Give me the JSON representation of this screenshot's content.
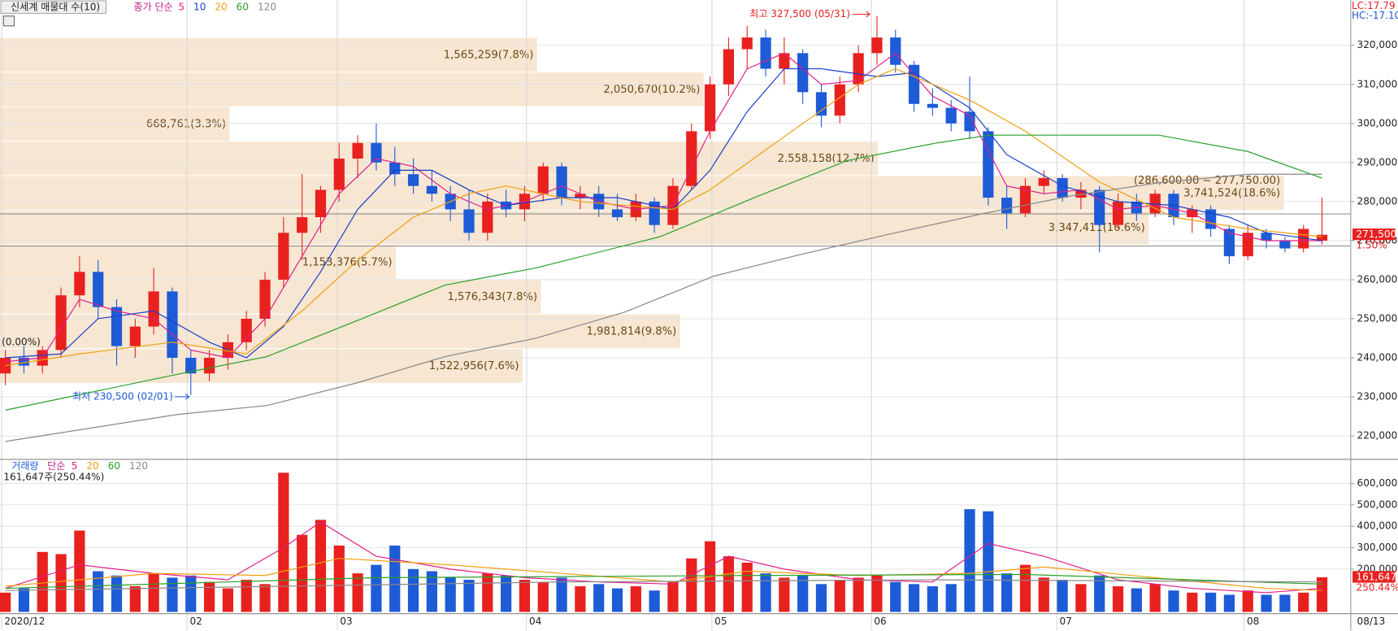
{
  "chart_data": {
    "type": "candlestick",
    "title": "신세계 매물대 수(10)",
    "ma_label": "종가 단순",
    "up_color": "#e8211f",
    "down_color": "#1e5bd6",
    "grid": true,
    "xlim": [
      -0.29,
      72.55
    ],
    "ylim": [
      214000,
      331600
    ],
    "yticks": [
      {
        "value": 220000,
        "label": "220,000"
      },
      {
        "value": 230000,
        "label": "230,000"
      },
      {
        "value": 240000,
        "label": "240,000"
      },
      {
        "value": 250000,
        "label": "250,000"
      },
      {
        "value": 260000,
        "label": "260,000"
      },
      {
        "value": 270000,
        "label": "270,000"
      },
      {
        "value": 280000,
        "label": "280,000"
      },
      {
        "value": 290000,
        "label": "290,000"
      },
      {
        "value": 300000,
        "label": "300,000"
      },
      {
        "value": 310000,
        "label": "310,000"
      },
      {
        "value": 320000,
        "label": "320,000"
      }
    ],
    "xticks": [
      {
        "value": -0.2,
        "label": "2020/12"
      },
      {
        "value": 9.8,
        "label": "02"
      },
      {
        "value": 17.9,
        "label": "03"
      },
      {
        "value": 28.1,
        "label": "04"
      },
      {
        "value": 38.1,
        "label": "05"
      },
      {
        "value": 46.7,
        "label": "06"
      },
      {
        "value": 56.7,
        "label": "07"
      },
      {
        "value": 66.8,
        "label": "08"
      }
    ],
    "last_date": "08/13",
    "candles": [
      [
        236000,
        242000,
        233000,
        240000
      ],
      [
        240000,
        243000,
        236000,
        238000
      ],
      [
        238000,
        243000,
        236000,
        242000
      ],
      [
        242000,
        258000,
        240000,
        256000
      ],
      [
        256000,
        266000,
        253000,
        262000
      ],
      [
        262000,
        265000,
        250000,
        253000
      ],
      [
        253000,
        255000,
        238000,
        243000
      ],
      [
        243000,
        250000,
        240000,
        248000
      ],
      [
        248000,
        263000,
        246000,
        257000
      ],
      [
        257000,
        258000,
        236000,
        240000
      ],
      [
        240000,
        242000,
        230500,
        236000
      ],
      [
        236000,
        242000,
        234000,
        240000
      ],
      [
        240000,
        246000,
        237000,
        244000
      ],
      [
        244000,
        252000,
        242000,
        250000
      ],
      [
        250000,
        262000,
        248000,
        260000
      ],
      [
        260000,
        276000,
        258000,
        272000
      ],
      [
        272000,
        287000,
        265000,
        276000
      ],
      [
        276000,
        284000,
        272000,
        283000
      ],
      [
        283000,
        295000,
        280000,
        291000
      ],
      [
        291000,
        297000,
        286000,
        295000
      ],
      [
        295000,
        300000,
        288000,
        290000
      ],
      [
        290000,
        294000,
        284000,
        287000
      ],
      [
        287000,
        291000,
        282000,
        284000
      ],
      [
        284000,
        288000,
        280000,
        282000
      ],
      [
        282000,
        284000,
        275000,
        278000
      ],
      [
        278000,
        283000,
        270000,
        272000
      ],
      [
        272000,
        282000,
        270000,
        280000
      ],
      [
        280000,
        283000,
        276000,
        278000
      ],
      [
        278000,
        284000,
        275000,
        282000
      ],
      [
        282000,
        290000,
        280000,
        289000
      ],
      [
        289000,
        290000,
        279000,
        281000
      ],
      [
        281000,
        284000,
        278000,
        282000
      ],
      [
        282000,
        284000,
        276000,
        278000
      ],
      [
        278000,
        282000,
        275000,
        276000
      ],
      [
        276000,
        282000,
        275000,
        280000
      ],
      [
        280000,
        281000,
        272000,
        274000
      ],
      [
        274000,
        286000,
        273000,
        284000
      ],
      [
        284000,
        300000,
        283000,
        298000
      ],
      [
        298000,
        312000,
        296000,
        310000
      ],
      [
        310000,
        322000,
        307000,
        319000
      ],
      [
        319000,
        325000,
        314000,
        322000
      ],
      [
        322000,
        324000,
        312000,
        314000
      ],
      [
        314000,
        322000,
        310000,
        318000
      ],
      [
        318000,
        319000,
        305000,
        308000
      ],
      [
        308000,
        310000,
        299000,
        302000
      ],
      [
        302000,
        312000,
        300000,
        310000
      ],
      [
        310000,
        320000,
        308000,
        318000
      ],
      [
        318000,
        327500,
        315000,
        322000
      ],
      [
        322000,
        324000,
        313000,
        315000
      ],
      [
        315000,
        316000,
        303000,
        305000
      ],
      [
        305000,
        309000,
        302000,
        304000
      ],
      [
        304000,
        306000,
        298000,
        300000
      ],
      [
        303000,
        312000,
        296000,
        298000
      ],
      [
        298000,
        299000,
        279000,
        281000
      ],
      [
        281000,
        284000,
        273000,
        277000
      ],
      [
        277000,
        286000,
        276000,
        284000
      ],
      [
        284000,
        288000,
        282000,
        286000
      ],
      [
        286000,
        287000,
        280000,
        281000
      ],
      [
        281000,
        285000,
        278000,
        283000
      ],
      [
        283000,
        284000,
        267000,
        274000
      ],
      [
        274000,
        282000,
        273000,
        280000
      ],
      [
        280000,
        282000,
        275000,
        277000
      ],
      [
        277000,
        283000,
        276000,
        282000
      ],
      [
        282000,
        283000,
        274000,
        276000
      ],
      [
        276000,
        279000,
        272000,
        278000
      ],
      [
        278000,
        279000,
        271000,
        273000
      ],
      [
        273000,
        274000,
        264000,
        266000
      ],
      [
        266000,
        274000,
        265000,
        272000
      ],
      [
        272000,
        273000,
        268000,
        270000
      ],
      [
        270000,
        271000,
        267000,
        268000
      ],
      [
        268000,
        274000,
        267000,
        273000
      ],
      [
        270000,
        281000,
        269000,
        271500
      ]
    ],
    "series": [
      {
        "name": "5",
        "color": "#e0218a",
        "x": [
          0,
          2,
          4,
          6,
          8,
          10,
          12,
          14,
          16,
          18,
          20,
          22,
          24,
          26,
          28,
          30,
          32,
          34,
          36,
          38,
          40,
          42,
          44,
          46,
          48,
          50,
          52,
          54,
          56,
          58,
          60,
          62,
          64,
          66,
          68,
          71
        ],
        "values": [
          239000,
          240000,
          255000,
          252000,
          250000,
          242000,
          240000,
          250000,
          266000,
          282000,
          291000,
          289000,
          282000,
          278000,
          280000,
          284000,
          280000,
          278000,
          279000,
          298000,
          314000,
          318000,
          310000,
          311000,
          318000,
          307000,
          302000,
          284000,
          282000,
          283000,
          278000,
          279000,
          277000,
          272000,
          270000,
          270000
        ]
      },
      {
        "name": "10",
        "color": "#1a3fc9",
        "x": [
          0,
          3,
          5,
          8,
          11,
          13,
          15,
          17,
          19,
          21,
          23,
          25,
          27,
          30,
          33,
          36,
          38,
          40,
          42,
          44,
          47,
          49,
          52,
          54,
          57,
          60,
          63,
          66,
          68,
          71
        ],
        "values": [
          240000,
          241000,
          250000,
          252000,
          244000,
          240000,
          248000,
          262000,
          278000,
          288000,
          288000,
          283000,
          279000,
          281000,
          281000,
          278000,
          288000,
          303000,
          314000,
          314000,
          312000,
          313000,
          304000,
          292000,
          284000,
          280000,
          279000,
          276000,
          272000,
          270000
        ]
      },
      {
        "name": "20",
        "color": "#f0a010",
        "x": [
          0,
          4,
          9,
          13,
          16,
          19,
          22,
          25,
          27,
          31,
          36,
          38,
          43,
          46,
          48,
          52,
          55,
          59,
          63,
          67,
          71
        ],
        "values": [
          238000,
          241000,
          244000,
          241000,
          252000,
          265000,
          276000,
          282000,
          284000,
          280000,
          278000,
          283000,
          300000,
          310000,
          314000,
          306000,
          298000,
          285000,
          276000,
          273000,
          271000
        ]
      },
      {
        "name": "60",
        "color": "#2aa02a",
        "x": [
          0,
          9.3,
          14.1,
          18.9,
          23.7,
          28.6,
          35.3,
          40.6,
          45.4,
          50.2,
          53.1,
          62.2,
          67,
          71
        ],
        "values": [
          226600,
          235800,
          240300,
          249400,
          258600,
          263000,
          271000,
          281400,
          290500,
          295000,
          297000,
          297000,
          292800,
          286000
        ]
      },
      {
        "name": "120",
        "color": "#888888",
        "x": [
          0,
          9.3,
          14.1,
          18.9,
          23.7,
          28.6,
          33.4,
          38.2,
          43,
          47.8,
          52.6,
          57.4,
          62.2,
          67,
          71
        ],
        "values": [
          218600,
          225500,
          227800,
          233500,
          240300,
          245000,
          251700,
          260900,
          266600,
          271800,
          276800,
          281400,
          284800,
          287000,
          287000
        ]
      }
    ],
    "hlines": [
      276850,
      268650
    ],
    "volume_profile": {
      "color": "#f6e6d2",
      "text_color": "#6b4a1a",
      "max_range_label": "(286,600.00 ~ 277,750.00)",
      "bands": [
        {
          "low": 313150,
          "high": 322000,
          "volume": 1565259,
          "label": "1,565,259(7.8%)"
        },
        {
          "low": 304300,
          "high": 313150,
          "volume": 2050670,
          "label": "2,050,670(10.2%)"
        },
        {
          "low": 295450,
          "high": 304300,
          "volume": 668761,
          "label": "668,761(3.3%)"
        },
        {
          "low": 286600,
          "high": 295450,
          "volume": 2558158,
          "label": "2,558,158(12.7%)"
        },
        {
          "low": 277750,
          "high": 286600,
          "volume": 3741524,
          "label": "3,741,524(18.6%)"
        },
        {
          "low": 268900,
          "high": 277750,
          "volume": 3347411,
          "label": "3,347,411(16.6%)"
        },
        {
          "low": 260050,
          "high": 268900,
          "volume": 1153376,
          "label": "1,153,376(5.7%)"
        },
        {
          "low": 251200,
          "high": 260050,
          "volume": 1576343,
          "label": "1,576,343(7.8%)"
        },
        {
          "low": 242350,
          "high": 251200,
          "volume": 1981814,
          "label": "1,981,814(9.8%)"
        },
        {
          "low": 233500,
          "high": 242350,
          "volume": 1522956,
          "label": "1,522,956(7.6%)"
        }
      ]
    },
    "high_note": {
      "text": "최고 327,500 (05/31)",
      "x": 47,
      "value": 327500
    },
    "low_note": {
      "text": "최저 230,500 (02/01)",
      "x": 10,
      "value": 230500
    },
    "start_change": "(0.00%)",
    "last_price_label": "271,500",
    "last_change": "1.50%",
    "lc": "LC:17.79",
    "hc": "HC:-17.10",
    "volume": {
      "title": "거래량",
      "ma_label": "단순",
      "info": "161,647주(250.44%)",
      "last_label": "161,647",
      "last_ratio": "250.44%",
      "ylim": [
        0,
        712500
      ],
      "yticks": [
        {
          "value": 200000,
          "label": "200,000"
        },
        {
          "value": 300000,
          "label": "300,000"
        },
        {
          "value": 400000,
          "label": "400,000"
        },
        {
          "value": 500000,
          "label": "500,000"
        },
        {
          "value": 600000,
          "label": "600,000"
        }
      ],
      "values": [
        90000,
        110000,
        280000,
        270000,
        380000,
        190000,
        170000,
        120000,
        180000,
        160000,
        170000,
        140000,
        110000,
        150000,
        130000,
        650000,
        360000,
        430000,
        310000,
        180000,
        220000,
        310000,
        200000,
        190000,
        160000,
        150000,
        180000,
        170000,
        150000,
        140000,
        160000,
        120000,
        130000,
        110000,
        120000,
        100000,
        140000,
        250000,
        330000,
        260000,
        230000,
        180000,
        160000,
        170000,
        130000,
        150000,
        160000,
        170000,
        140000,
        130000,
        120000,
        130000,
        480000,
        470000,
        180000,
        220000,
        160000,
        150000,
        130000,
        170000,
        120000,
        110000,
        130000,
        100000,
        90000,
        90000,
        80000,
        100000,
        80000,
        80000,
        90000,
        161647
      ],
      "series": [
        {
          "name": "5",
          "color": "#e0218a",
          "x": [
            0,
            4,
            8,
            12,
            15,
            17,
            20,
            24,
            28,
            32,
            36,
            39,
            42,
            46,
            50,
            53,
            56,
            60,
            64,
            68,
            71
          ],
          "values": [
            110000,
            220000,
            180000,
            150000,
            300000,
            420000,
            260000,
            200000,
            160000,
            140000,
            130000,
            260000,
            200000,
            150000,
            140000,
            320000,
            260000,
            150000,
            110000,
            90000,
            110000
          ]
        },
        {
          "name": "20",
          "color": "#f0a010",
          "x": [
            0,
            8,
            14,
            18,
            24,
            30,
            36,
            40,
            46,
            52,
            56,
            62,
            68,
            71
          ],
          "values": [
            120000,
            180000,
            170000,
            250000,
            220000,
            180000,
            140000,
            190000,
            170000,
            180000,
            210000,
            160000,
            110000,
            100000
          ]
        },
        {
          "name": "60",
          "color": "#2aa02a",
          "x": [
            0,
            20,
            40,
            55,
            71
          ],
          "values": [
            110000,
            160000,
            170000,
            175000,
            130000
          ]
        },
        {
          "name": "120",
          "color": "#888888",
          "x": [
            0,
            30,
            50,
            71
          ],
          "values": [
            100000,
            140000,
            150000,
            140000
          ]
        }
      ]
    }
  }
}
